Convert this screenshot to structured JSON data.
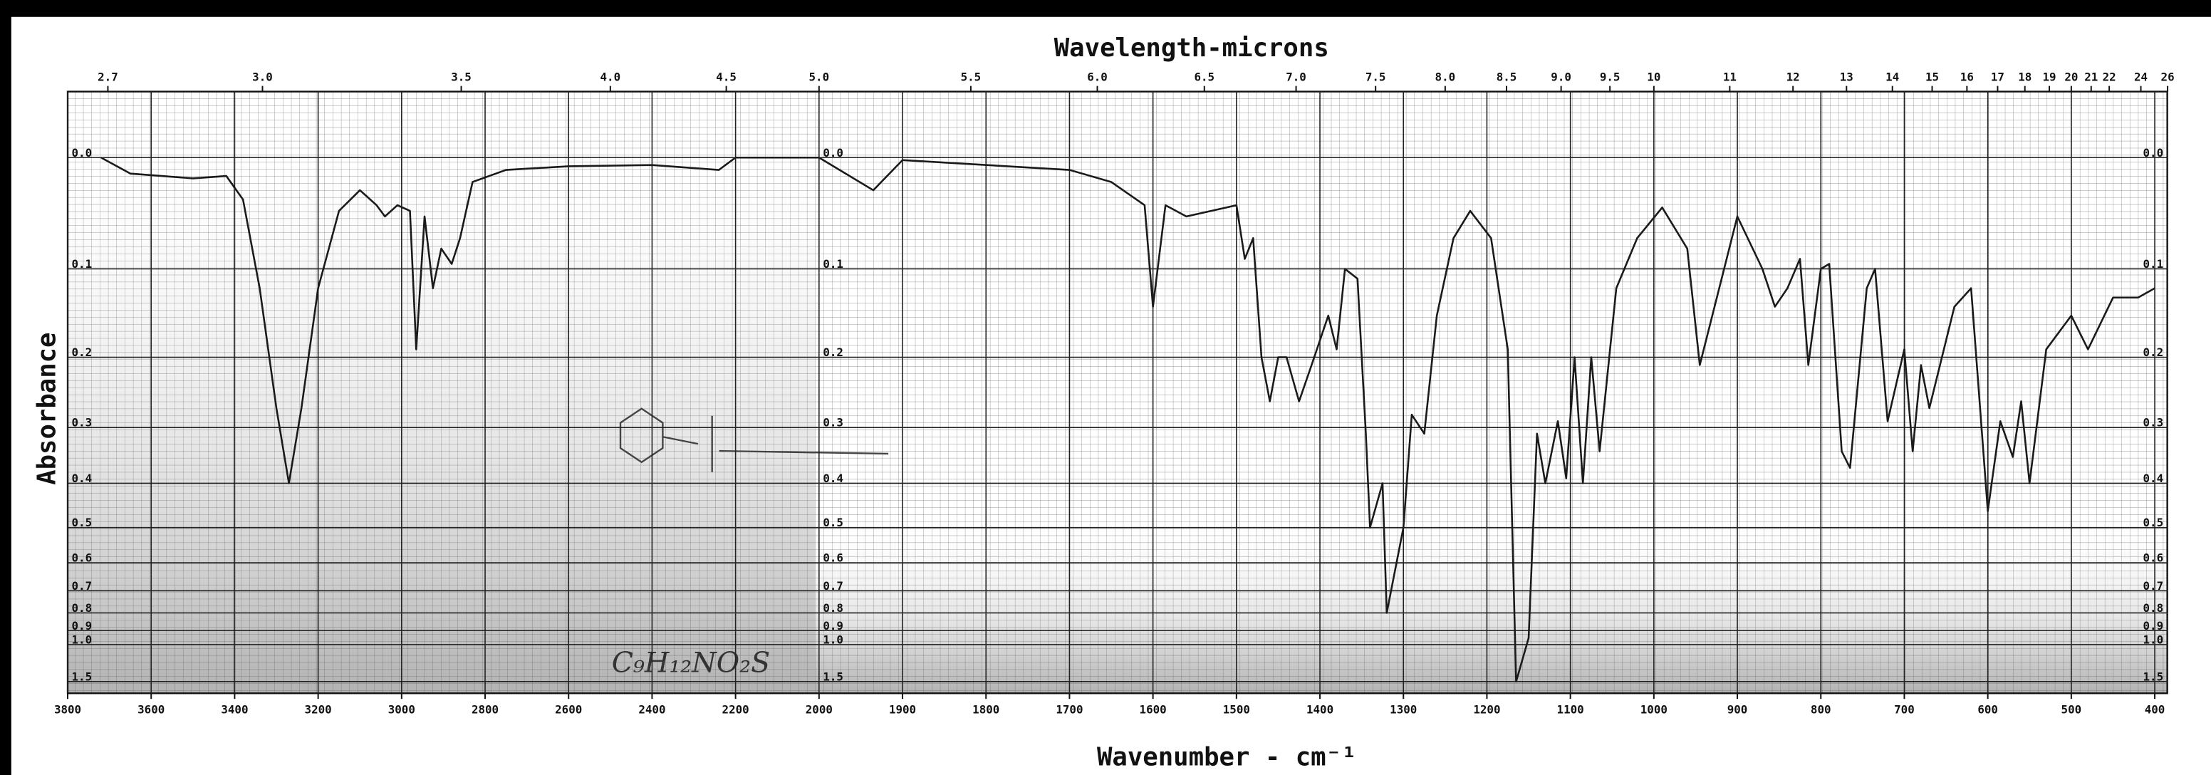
{
  "chart_data": {
    "type": "line",
    "title": "Wavelength-microns",
    "x_label": "Wavenumber - cm⁻¹",
    "y_label": "Absorbance",
    "annotations": [
      "C₉H₁₂NO₂S"
    ],
    "y_scale": "absorbance",
    "x_split": 2000,
    "grid": true,
    "color": "#1a1a1a",
    "xlim": [
      3800,
      385
    ],
    "ylim": [
      -0.05,
      2
    ],
    "xticks": [
      3800,
      3600,
      3400,
      3200,
      3000,
      2800,
      2600,
      2400,
      2200,
      2000,
      1900,
      1800,
      1700,
      1600,
      1500,
      1400,
      1300,
      1200,
      1100,
      1000,
      900,
      800,
      700,
      600,
      500,
      400
    ],
    "top_ticks": [
      2.7,
      {
        "value": 3,
        "label": "3.0"
      },
      3.5,
      {
        "value": 4,
        "label": "4.0"
      },
      4.5,
      {
        "value": 5,
        "label": "5.0"
      },
      5.5,
      {
        "value": 6,
        "label": "6.0"
      },
      6.5,
      {
        "value": 7,
        "label": "7.0"
      },
      7.5,
      {
        "value": 8,
        "label": "8.0"
      },
      8.5,
      {
        "value": 9,
        "label": "9.0"
      },
      9.5,
      10,
      11,
      12,
      13,
      14,
      15,
      16,
      17,
      18,
      19,
      20,
      21,
      22,
      24,
      26
    ],
    "yticks": [
      {
        "value": 0,
        "label": "0.0"
      },
      0.1,
      0.2,
      0.3,
      0.4,
      0.5,
      0.6,
      0.7,
      0.8,
      0.9,
      {
        "value": 1,
        "label": "1.0"
      },
      1.5
    ],
    "x": [
      3720,
      3650,
      3500,
      3420,
      3380,
      3340,
      3300,
      3270,
      3240,
      3200,
      3150,
      3100,
      3060,
      3040,
      3010,
      2980,
      2965,
      2945,
      2925,
      2905,
      2880,
      2860,
      2830,
      2750,
      2600,
      2400,
      2240,
      2200,
      2000,
      1935,
      1900,
      1700,
      1650,
      1610,
      1600,
      1585,
      1560,
      1530,
      1500,
      1490,
      1480,
      1470,
      1460,
      1450,
      1440,
      1425,
      1410,
      1390,
      1380,
      1370,
      1355,
      1345,
      1340,
      1325,
      1320,
      1300,
      1290,
      1275,
      1260,
      1240,
      1220,
      1195,
      1175,
      1165,
      1150,
      1140,
      1130,
      1115,
      1105,
      1095,
      1085,
      1075,
      1065,
      1045,
      1020,
      990,
      960,
      945,
      930,
      900,
      870,
      855,
      840,
      825,
      815,
      800,
      790,
      775,
      765,
      745,
      735,
      720,
      700,
      690,
      680,
      670,
      640,
      620,
      600,
      585,
      570,
      560,
      550,
      530,
      500,
      480,
      450,
      420,
      400
    ],
    "values": [
      0.0,
      0.013,
      0.017,
      0.015,
      0.035,
      0.12,
      0.27,
      0.4,
      0.27,
      0.12,
      0.045,
      0.027,
      0.04,
      0.05,
      0.04,
      0.045,
      0.19,
      0.05,
      0.12,
      0.08,
      0.095,
      0.07,
      0.02,
      0.01,
      0.007,
      0.006,
      0.01,
      0.0,
      0.0,
      0.027,
      0.002,
      0.01,
      0.02,
      0.04,
      0.14,
      0.04,
      0.05,
      0.045,
      0.04,
      0.09,
      0.07,
      0.2,
      0.26,
      0.2,
      0.2,
      0.26,
      0.21,
      0.15,
      0.19,
      0.1,
      0.11,
      0.31,
      0.5,
      0.4,
      0.8,
      0.5,
      0.28,
      0.31,
      0.15,
      0.07,
      0.045,
      0.07,
      0.19,
      1.5,
      0.95,
      0.31,
      0.4,
      0.29,
      0.39,
      0.2,
      0.4,
      0.2,
      0.34,
      0.12,
      0.07,
      0.042,
      0.08,
      0.21,
      0.15,
      0.05,
      0.1,
      0.14,
      0.12,
      0.09,
      0.21,
      0.1,
      0.095,
      0.34,
      0.37,
      0.12,
      0.1,
      0.29,
      0.19,
      0.34,
      0.21,
      0.27,
      0.14,
      0.12,
      0.46,
      0.29,
      0.35,
      0.26,
      0.4,
      0.19,
      0.15,
      0.19,
      0.13,
      0.13,
      0.12
    ]
  }
}
